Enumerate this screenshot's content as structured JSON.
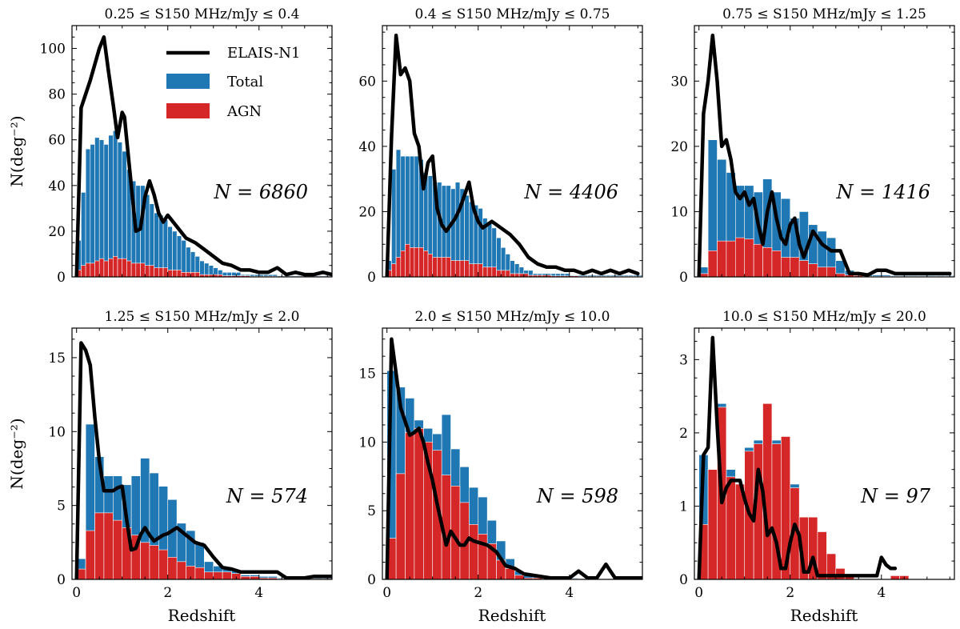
{
  "figure": {
    "xlabel": "Redshift",
    "ylabel": "N(deg⁻²)",
    "legend": {
      "placement": "top-center of first panel",
      "entries": [
        {
          "label": "ELAIS-N1",
          "style": "line",
          "color": "#000000"
        },
        {
          "label": "Total",
          "style": "patch",
          "color": "#1f77b4"
        },
        {
          "label": "AGN",
          "style": "patch",
          "color": "#d62728"
        }
      ]
    },
    "colors": {
      "total": "#1f77b4",
      "agn": "#d62728",
      "elais": "#000000"
    }
  },
  "chart_data": [
    {
      "type": "bar",
      "title": "0.25 ≤ S150 MHz/mJy ≤ 0.4",
      "annotation": "N = 6860",
      "xlim": [
        -0.1,
        5.6
      ],
      "ylim": [
        0,
        110
      ],
      "xticks": [
        0,
        2,
        4
      ],
      "yticks": [
        0,
        20,
        40,
        60,
        80,
        100
      ],
      "bin_width": 0.1,
      "total": [
        16,
        37,
        56,
        58,
        61,
        60,
        58,
        62,
        64,
        59,
        55,
        47,
        42,
        40,
        40,
        36,
        32,
        28,
        27,
        25,
        22,
        20,
        18,
        16,
        13,
        11,
        9,
        7,
        6,
        5,
        4,
        3,
        2,
        2,
        2,
        2,
        1,
        1,
        1,
        1,
        1,
        1,
        1,
        1,
        0.5,
        0.5,
        0.5,
        0.5,
        0.5,
        0.5,
        0.5,
        0.5,
        0.5,
        0.5,
        0.5,
        0.5
      ],
      "agn": [
        3,
        5,
        6,
        6,
        7,
        8,
        7,
        8,
        9,
        8,
        8,
        7,
        6,
        6,
        6,
        5,
        5,
        4,
        4,
        4,
        3,
        3,
        3,
        2,
        2,
        2,
        2,
        1,
        1,
        1,
        1,
        1,
        0.5,
        0.5,
        0.5,
        0.5,
        0.5,
        0.5,
        0.3,
        0.3,
        0.3,
        0.3,
        0.3,
        0.3,
        0.2,
        0.2,
        0.2,
        0.2,
        0.2,
        0.2,
        0.2,
        0.2,
        0.2,
        0.2,
        0.2,
        0.2
      ],
      "line": {
        "x": [
          0,
          0.1,
          0.3,
          0.5,
          0.6,
          0.7,
          0.8,
          0.9,
          1.0,
          1.05,
          1.1,
          1.3,
          1.4,
          1.5,
          1.6,
          1.7,
          1.8,
          1.9,
          2.0,
          2.2,
          2.4,
          2.6,
          2.8,
          3.0,
          3.2,
          3.4,
          3.6,
          3.8,
          4.0,
          4.2,
          4.4,
          4.6,
          4.8,
          5.0,
          5.2,
          5.4,
          5.6
        ],
        "y": [
          0,
          74,
          86,
          100,
          105,
          90,
          76,
          61,
          72,
          70,
          60,
          20,
          21,
          35,
          42,
          36,
          28,
          24,
          27,
          22,
          17,
          15,
          12,
          9,
          6,
          5,
          3,
          3,
          2,
          2,
          4,
          1,
          2,
          1,
          1,
          2,
          1
        ]
      }
    },
    {
      "type": "bar",
      "title": "0.4 ≤ S150 MHz/mJy ≤ 0.75",
      "annotation": "N = 4406",
      "xlim": [
        -0.1,
        5.6
      ],
      "ylim": [
        0,
        77
      ],
      "xticks": [
        0,
        2,
        4
      ],
      "yticks": [
        0,
        20,
        40,
        60
      ],
      "bin_width": 0.1,
      "total": [
        5,
        33,
        39,
        37,
        37,
        37,
        37,
        36,
        32,
        31,
        29,
        29,
        28,
        28,
        27,
        29,
        27,
        25,
        23,
        22,
        21,
        18,
        17,
        15,
        12,
        9,
        7,
        5,
        4,
        3,
        2,
        2,
        1,
        1,
        1,
        1,
        1,
        1,
        1,
        1,
        0.5,
        0.5,
        0.5,
        0.5,
        0.5,
        0.5,
        0.5,
        0.5,
        0.5,
        0.5,
        0.5,
        0.5,
        0.5,
        0.5,
        0.5,
        0.5
      ],
      "agn": [
        2,
        4,
        6,
        8,
        10,
        9,
        9,
        9,
        8,
        7,
        6,
        6,
        6,
        6,
        5,
        5,
        5,
        5,
        4,
        4,
        4,
        3,
        3,
        3,
        2,
        2,
        2,
        1,
        1,
        1,
        1,
        0.5,
        0.5,
        0.5,
        0.5,
        0.5,
        0.3,
        0.3,
        0.3,
        0.3,
        0.3,
        0.3,
        0.2,
        0.2,
        0.2,
        0.2,
        0.2,
        0.2,
        0.2,
        0.2,
        0.2,
        0.2,
        0.2,
        0.2,
        0.2,
        0.2
      ],
      "line": {
        "x": [
          0,
          0.1,
          0.2,
          0.3,
          0.4,
          0.5,
          0.6,
          0.7,
          0.8,
          0.9,
          1.0,
          1.1,
          1.2,
          1.3,
          1.4,
          1.5,
          1.6,
          1.7,
          1.8,
          1.9,
          2.0,
          2.1,
          2.2,
          2.3,
          2.5,
          2.7,
          2.9,
          3.1,
          3.3,
          3.5,
          3.7,
          3.9,
          4.1,
          4.3,
          4.5,
          4.7,
          4.9,
          5.1,
          5.3,
          5.5
        ],
        "y": [
          0,
          43,
          74,
          62,
          64,
          60,
          44,
          40,
          27,
          35,
          37,
          21,
          16,
          14,
          16,
          18,
          21,
          25,
          29,
          21,
          17,
          15,
          16,
          17,
          15,
          13,
          10,
          6,
          4,
          3,
          3,
          2,
          2,
          1,
          2,
          1,
          2,
          1,
          2,
          1
        ]
      }
    },
    {
      "type": "bar",
      "title": "0.75 ≤ S150 MHz/mJy ≤ 1.25",
      "annotation": "N = 1416",
      "xlim": [
        -0.1,
        5.6
      ],
      "ylim": [
        0,
        38.5
      ],
      "xticks": [
        0,
        2,
        4
      ],
      "yticks": [
        0,
        10,
        20,
        30
      ],
      "bin_width": 0.2,
      "total": [
        1.5,
        21,
        18,
        16,
        14,
        14,
        13,
        15,
        13,
        12,
        9,
        10,
        8,
        7,
        6,
        2.5,
        1,
        0.5,
        0.3,
        0.3,
        0.3,
        0.2,
        0.2,
        0.2,
        0.2,
        0.2,
        0.2,
        0.2
      ],
      "agn": [
        0.5,
        4,
        5.5,
        5.5,
        6,
        5.8,
        5,
        4.5,
        4,
        3,
        3,
        2.5,
        2,
        1.5,
        1.5,
        0.5,
        0.3,
        0.2,
        0.1,
        0.1,
        0.1,
        0.1,
        0.1,
        0.1,
        0.1,
        0.1,
        0.1,
        0.1
      ],
      "line": {
        "x": [
          0,
          0.1,
          0.2,
          0.3,
          0.4,
          0.5,
          0.6,
          0.7,
          0.8,
          0.9,
          1.0,
          1.1,
          1.2,
          1.3,
          1.4,
          1.5,
          1.6,
          1.7,
          1.8,
          1.9,
          2.0,
          2.1,
          2.2,
          2.3,
          2.5,
          2.7,
          2.9,
          3.1,
          3.3,
          3.5,
          3.7,
          3.9,
          4.1,
          4.3,
          4.5,
          4.7,
          4.9,
          5.1,
          5.3,
          5.5
        ],
        "y": [
          0,
          25,
          30,
          37,
          30,
          20,
          21,
          18,
          13,
          12,
          13,
          11,
          12,
          8,
          5,
          10,
          13,
          9,
          6,
          5,
          8,
          9,
          5,
          3,
          7,
          5,
          4,
          4,
          0.5,
          0.5,
          0.3,
          1,
          1,
          0.5,
          0.5,
          0.5,
          0.5,
          0.5,
          0.5,
          0.5
        ]
      }
    },
    {
      "type": "bar",
      "title": "1.25 ≤ S150 MHz/mJy ≤ 2.0",
      "annotation": "N = 574",
      "xlim": [
        -0.1,
        5.6
      ],
      "ylim": [
        0,
        17
      ],
      "xticks": [
        0,
        2,
        4
      ],
      "yticks": [
        0,
        5,
        10,
        15
      ],
      "bin_width": 0.2,
      "total": [
        1.4,
        10.5,
        8.3,
        7,
        7,
        6.4,
        7,
        8.2,
        7.2,
        6.3,
        5.4,
        3.8,
        3.3,
        2.5,
        1.2,
        0.9,
        0.8,
        0.6,
        0.3,
        0.3,
        0.2,
        0.2,
        0.1,
        0.1,
        0.1,
        0.1,
        0.1,
        0.1
      ],
      "agn": [
        0.7,
        3.3,
        4.5,
        4.5,
        4,
        3.5,
        3,
        2.5,
        2.3,
        2,
        1.5,
        1.2,
        0.9,
        0.8,
        0.5,
        0.5,
        0.5,
        0.4,
        0.2,
        0.2,
        0.1,
        0.1,
        0.05,
        0.05,
        0.05,
        0.05,
        0.05,
        0.05
      ],
      "line": {
        "x": [
          0,
          0.1,
          0.2,
          0.3,
          0.4,
          0.5,
          0.6,
          0.7,
          0.8,
          0.9,
          1.0,
          1.1,
          1.2,
          1.3,
          1.4,
          1.5,
          1.6,
          1.7,
          1.8,
          1.9,
          2.0,
          2.2,
          2.4,
          2.6,
          2.8,
          3.0,
          3.2,
          3.4,
          3.6,
          3.8,
          4.0,
          4.2,
          4.4,
          4.6,
          4.8,
          5.0,
          5.2,
          5.4,
          5.6
        ],
        "y": [
          0,
          16,
          15.5,
          14.5,
          11,
          8,
          6,
          6,
          6,
          6.2,
          6.3,
          4,
          2,
          2.1,
          3,
          3.5,
          3,
          2.6,
          2.8,
          3,
          3.1,
          3.5,
          3,
          2.5,
          2.3,
          1.5,
          0.8,
          0.7,
          0.5,
          0.5,
          0.5,
          0.5,
          0.5,
          0.1,
          0.1,
          0.1,
          0.2,
          0.2,
          0.2
        ]
      }
    },
    {
      "type": "bar",
      "title": "2.0 ≤ S150 MHz/mJy ≤ 10.0",
      "annotation": "N = 598",
      "xlim": [
        -0.1,
        5.6
      ],
      "ylim": [
        0,
        18.3
      ],
      "xticks": [
        0,
        2,
        4
      ],
      "yticks": [
        0,
        5,
        10,
        15
      ],
      "bin_width": 0.2,
      "total": [
        15.2,
        14,
        13.2,
        11.6,
        11,
        10.6,
        12,
        9.5,
        8.2,
        6.7,
        6,
        4.3,
        2.8,
        1.5,
        0.6,
        0.3,
        0.2,
        0.1,
        0.1,
        0.1,
        0.1,
        0.05,
        0.05,
        0.05,
        0.05,
        0.05,
        0.05,
        0.05
      ],
      "agn": [
        3,
        7.7,
        10.7,
        11,
        10,
        9.4,
        7.6,
        6.8,
        5.6,
        4,
        3.3,
        2.6,
        1.4,
        0.8,
        0.3,
        0.1,
        0.1,
        0.05,
        0.05,
        0.05,
        0.05,
        0.05,
        0.05,
        0.05,
        0.05,
        0.05,
        0.05,
        0.05
      ],
      "line": {
        "x": [
          0,
          0.1,
          0.2,
          0.3,
          0.4,
          0.5,
          0.6,
          0.7,
          0.8,
          0.9,
          1.0,
          1.1,
          1.2,
          1.3,
          1.4,
          1.5,
          1.6,
          1.7,
          1.8,
          1.9,
          2.0,
          2.2,
          2.4,
          2.6,
          2.8,
          3.0,
          3.2,
          3.4,
          3.6,
          3.8,
          4.0,
          4.2,
          4.4,
          4.6,
          4.8,
          5.0,
          5.2,
          5.4,
          5.6
        ],
        "y": [
          0,
          17.5,
          15,
          12.5,
          11.5,
          10.5,
          10.7,
          11,
          10,
          8.5,
          7.2,
          5.5,
          4,
          2.5,
          3.5,
          3,
          2.5,
          2.5,
          3,
          2.8,
          2.7,
          2.5,
          2,
          1,
          0.8,
          0.4,
          0.3,
          0.2,
          0.1,
          0.1,
          0.1,
          0.6,
          0.1,
          0.1,
          1.1,
          0.1,
          0.1,
          0.1,
          0.1
        ]
      }
    },
    {
      "type": "bar",
      "title": "10.0 ≤ S150 MHz/mJy ≤ 20.0",
      "annotation": "N = 97",
      "xlim": [
        -0.1,
        5.6
      ],
      "ylim": [
        0,
        3.43
      ],
      "xticks": [
        0,
        2,
        4
      ],
      "yticks": [
        0,
        1,
        2,
        3
      ],
      "bin_width": 0.2,
      "total": [
        1.7,
        1.5,
        2.4,
        1.5,
        1.3,
        1.8,
        1.9,
        2.4,
        1.9,
        1.9,
        1.3,
        0.85,
        0.85,
        0.65,
        0.35,
        0.15,
        0.05,
        0,
        0,
        0,
        0,
        0.05,
        0.05,
        0,
        0,
        0,
        0,
        0
      ],
      "agn": [
        0.75,
        1.5,
        2.35,
        1.4,
        1.3,
        1.75,
        1.85,
        2.4,
        1.85,
        1.95,
        1.25,
        0.85,
        0.85,
        0.65,
        0.35,
        0.15,
        0.05,
        0,
        0,
        0,
        0,
        0.05,
        0.05,
        0,
        0,
        0,
        0,
        0
      ],
      "line": {
        "x": [
          0,
          0.1,
          0.2,
          0.3,
          0.4,
          0.5,
          0.6,
          0.7,
          0.8,
          0.9,
          1.0,
          1.1,
          1.2,
          1.3,
          1.4,
          1.5,
          1.6,
          1.7,
          1.8,
          1.9,
          2.0,
          2.1,
          2.2,
          2.3,
          2.4,
          2.5,
          2.6,
          2.7,
          2.8,
          2.9,
          3.0,
          3.1,
          3.2,
          3.3,
          3.4,
          3.5,
          3.6,
          3.7,
          3.8,
          3.9,
          4.0,
          4.1,
          4.2,
          4.3
        ],
        "y": [
          0,
          1.7,
          1.8,
          3.3,
          2.1,
          1.05,
          1.25,
          1.35,
          1.35,
          1.35,
          1.1,
          0.9,
          0.8,
          1.5,
          1.2,
          0.6,
          0.7,
          0.5,
          0.15,
          0.15,
          0.5,
          0.75,
          0.6,
          0.1,
          0.1,
          0.3,
          0.05,
          0.05,
          0.05,
          0.05,
          0.05,
          0.05,
          0.05,
          0.05,
          0.05,
          0.05,
          0.05,
          0.05,
          0.05,
          0.05,
          0.3,
          0.2,
          0.15,
          0.15
        ]
      }
    }
  ]
}
